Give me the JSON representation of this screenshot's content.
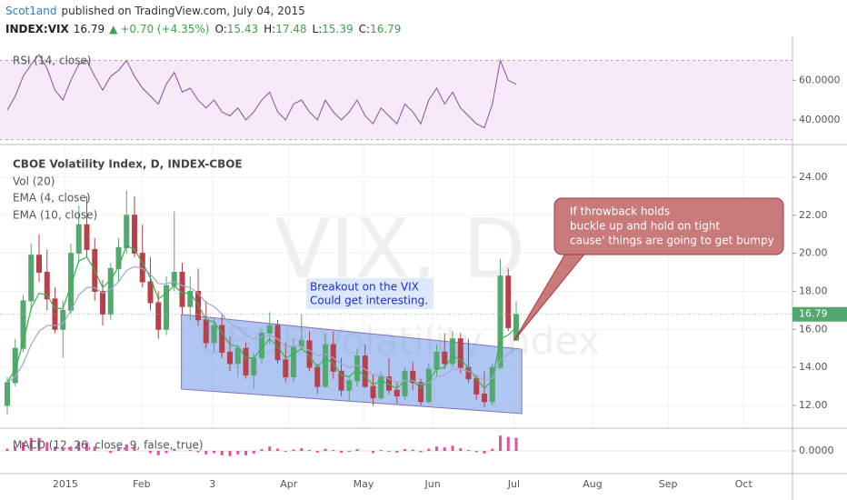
{
  "header": {
    "author": "Scot1and",
    "published": "published on TradingView.com, July 04, 2015",
    "symbol": "INDEX:VIX",
    "arrow": "▲",
    "change": "+0.70 (+4.35%)",
    "labels": [
      "O:",
      "H:",
      "L:",
      "C:"
    ]
  },
  "chart_data": [
    {
      "type": "line",
      "title": "RSI (14, close)",
      "values": [
        45,
        52,
        62,
        68,
        73,
        66,
        55,
        50,
        60,
        68,
        70,
        62,
        55,
        62,
        65,
        70,
        62,
        56,
        52,
        48,
        58,
        64,
        54,
        56,
        50,
        46,
        50,
        44,
        42,
        46,
        40,
        44,
        50,
        54,
        44,
        40,
        48,
        50,
        44,
        40,
        50,
        44,
        40,
        44,
        50,
        42,
        38,
        46,
        42,
        38,
        48,
        44,
        38,
        50,
        56,
        48,
        54,
        46,
        42,
        38,
        36,
        48,
        70,
        60,
        58
      ],
      "color": "#8e4ba0",
      "bands": [
        30,
        70
      ],
      "band_color": "#f6eaf8",
      "ylim": [
        28,
        78.5
      ],
      "yticks": [
        {
          "value": 40,
          "label": "40.0000"
        },
        {
          "value": 60,
          "label": "60.0000"
        }
      ]
    },
    {
      "type": "candlestick",
      "title": "CBOE Volatility Index, D, INDEX-CBOE",
      "volume_label": "Vol (20)",
      "watermark": "VIX, D",
      "watermark_subtitle": "CBOE Volatility Index",
      "ohlc": [
        [
          12.0,
          13.5,
          11.5,
          13.2
        ],
        [
          13.2,
          15.5,
          13.0,
          15.0
        ],
        [
          15.0,
          17.8,
          14.8,
          17.5
        ],
        [
          17.5,
          20.5,
          17.0,
          19.9
        ],
        [
          19.9,
          21.0,
          18.5,
          19.0
        ],
        [
          19.0,
          20.2,
          17.0,
          17.6
        ],
        [
          17.6,
          18.2,
          15.8,
          16.0
        ],
        [
          16.0,
          17.5,
          14.5,
          17.0
        ],
        [
          17.0,
          20.5,
          16.8,
          20.0
        ],
        [
          20.0,
          22.5,
          19.5,
          21.5
        ],
        [
          21.5,
          23.0,
          19.8,
          20.2
        ],
        [
          20.2,
          20.8,
          17.5,
          18.0
        ],
        [
          18.0,
          18.6,
          16.2,
          16.8
        ],
        [
          16.8,
          19.5,
          16.5,
          19.2
        ],
        [
          19.2,
          20.8,
          18.5,
          20.3
        ],
        [
          20.3,
          23.3,
          20.0,
          22.0
        ],
        [
          22.0,
          23.0,
          19.8,
          20.0
        ],
        [
          20.0,
          21.5,
          18.2,
          18.5
        ],
        [
          18.5,
          19.8,
          17.0,
          17.4
        ],
        [
          17.4,
          18.0,
          15.5,
          16.0
        ],
        [
          16.0,
          18.8,
          15.7,
          18.3
        ],
        [
          18.3,
          22.2,
          18.0,
          19.0
        ],
        [
          19.0,
          19.5,
          16.8,
          17.2
        ],
        [
          17.2,
          18.8,
          16.5,
          18.0
        ],
        [
          18.0,
          19.2,
          16.2,
          16.5
        ],
        [
          16.5,
          17.5,
          15.0,
          15.3
        ],
        [
          15.3,
          16.6,
          14.8,
          16.2
        ],
        [
          16.2,
          16.8,
          14.5,
          14.8
        ],
        [
          14.8,
          15.6,
          13.8,
          14.2
        ],
        [
          14.2,
          15.2,
          13.5,
          15.0
        ],
        [
          15.0,
          15.3,
          13.4,
          13.6
        ],
        [
          13.6,
          14.8,
          12.9,
          14.5
        ],
        [
          14.5,
          16.0,
          14.2,
          15.8
        ],
        [
          15.8,
          16.9,
          15.2,
          16.2
        ],
        [
          16.2,
          16.5,
          14.2,
          14.4
        ],
        [
          14.4,
          15.3,
          13.2,
          13.5
        ],
        [
          13.5,
          15.5,
          13.2,
          15.1
        ],
        [
          15.1,
          16.8,
          14.9,
          15.4
        ],
        [
          15.4,
          15.9,
          13.8,
          14.0
        ],
        [
          14.0,
          14.2,
          12.6,
          13.0
        ],
        [
          13.0,
          15.8,
          12.9,
          15.2
        ],
        [
          15.2,
          15.9,
          13.4,
          13.8
        ],
        [
          13.8,
          14.5,
          12.5,
          12.8
        ],
        [
          12.8,
          13.5,
          12.2,
          13.3
        ],
        [
          13.3,
          15.0,
          13.0,
          14.6
        ],
        [
          14.6,
          15.2,
          12.9,
          13.0
        ],
        [
          13.0,
          13.6,
          12.0,
          12.4
        ],
        [
          12.4,
          13.8,
          12.3,
          13.5
        ],
        [
          13.5,
          14.5,
          12.6,
          12.8
        ],
        [
          12.8,
          13.2,
          12.1,
          12.5
        ],
        [
          12.5,
          14.0,
          12.3,
          13.8
        ],
        [
          13.8,
          14.3,
          12.8,
          13.2
        ],
        [
          13.2,
          13.4,
          12.0,
          12.2
        ],
        [
          12.2,
          14.2,
          12.1,
          13.9
        ],
        [
          13.9,
          15.2,
          13.5,
          14.8
        ],
        [
          14.8,
          15.8,
          13.9,
          14.2
        ],
        [
          14.2,
          15.9,
          14.0,
          15.5
        ],
        [
          15.5,
          15.8,
          13.7,
          14.0
        ],
        [
          14.0,
          15.5,
          13.2,
          13.4
        ],
        [
          13.4,
          13.6,
          12.3,
          12.6
        ],
        [
          12.6,
          13.8,
          11.9,
          12.2
        ],
        [
          12.2,
          14.2,
          12.0,
          14.0
        ],
        [
          14.0,
          19.7,
          13.9,
          18.8
        ],
        [
          18.8,
          19.2,
          15.9,
          16.09
        ],
        [
          15.43,
          17.48,
          15.39,
          16.79
        ]
      ],
      "up_color": "#53a86f",
      "down_color": "#b8404a",
      "series": [
        {
          "name": "EMA (4, close)",
          "color": "#37b34a",
          "values": [
            13.2,
            13.9,
            15.3,
            17.1,
            17.9,
            17.8,
            17.1,
            17.1,
            18.3,
            19.6,
            19.8,
            19.1,
            18.2,
            18.6,
            19.3,
            20.4,
            20.2,
            19.5,
            18.7,
            17.6,
            17.9,
            18.3,
            17.9,
            17.9,
            17.3,
            16.5,
            16.4,
            15.8,
            15.2,
            15.1,
            14.5,
            14.5,
            15.0,
            15.5,
            15.1,
            14.5,
            14.7,
            15.0,
            14.6,
            14.0,
            14.5,
            14.2,
            13.6,
            13.5,
            13.9,
            13.5,
            13.1,
            13.3,
            13.1,
            12.9,
            13.3,
            13.3,
            12.9,
            13.3,
            13.9,
            14.0,
            14.6,
            14.4,
            14.0,
            13.4,
            12.9,
            13.3,
            15.5,
            15.7,
            16.1
          ]
        },
        {
          "name": "EMA (10, close)",
          "color": "#9fa8cc",
          "values": [
            13.2,
            13.5,
            14.2,
            15.2,
            15.9,
            16.2,
            16.2,
            16.3,
            17.0,
            17.8,
            18.2,
            18.2,
            17.9,
            18.1,
            18.5,
            19.1,
            19.3,
            19.2,
            18.9,
            18.4,
            18.4,
            18.5,
            18.3,
            18.2,
            17.9,
            17.4,
            17.2,
            16.8,
            16.3,
            16.1,
            15.7,
            15.5,
            15.6,
            15.7,
            15.5,
            15.1,
            15.1,
            15.1,
            14.9,
            14.6,
            14.7,
            14.5,
            14.2,
            14.0,
            14.1,
            13.9,
            13.6,
            13.6,
            13.4,
            13.2,
            13.3,
            13.3,
            13.1,
            13.2,
            13.5,
            13.6,
            13.9,
            13.9,
            13.8,
            13.6,
            13.3,
            13.4,
            14.4,
            14.7,
            15.0
          ]
        }
      ],
      "channel": {
        "x": [
          21.9,
          64.7,
          64.7,
          21.9
        ],
        "y": [
          16.78,
          14.96,
          11.57,
          12.86
        ],
        "color": "#6f97e8"
      },
      "annotations": [
        {
          "text": [
            "Breakout on the VIX",
            "Could get interesting."
          ]
        },
        {
          "text": [
            "If throwback holds",
            "buckle up  and hold on tight",
            "cause' things are going to get bumpy"
          ]
        }
      ],
      "ylim": [
        10.85,
        25.67
      ],
      "yticks": [
        {
          "value": 12,
          "label": "12.00"
        },
        {
          "value": 14,
          "label": "14.00"
        },
        {
          "value": 16,
          "label": "16.00"
        },
        {
          "value": 18,
          "label": "18.00"
        },
        {
          "value": 20,
          "label": "20.00"
        },
        {
          "value": 22,
          "label": "22.00"
        },
        {
          "value": 24,
          "label": "24.00"
        }
      ],
      "xlim": [
        -0.914,
        98.74
      ],
      "xticks": [
        {
          "value": 7.3,
          "label": "2015"
        },
        {
          "value": 16.9,
          "label": "Feb"
        },
        {
          "value": 25.8,
          "label": "3"
        },
        {
          "value": 35.4,
          "label": "Apr"
        },
        {
          "value": 44.8,
          "label": "May"
        },
        {
          "value": 53.5,
          "label": "Jun"
        },
        {
          "value": 63.7,
          "label": "Jul"
        },
        {
          "value": 73.6,
          "label": "Aug"
        },
        {
          "value": 83.1,
          "label": "Sep"
        },
        {
          "value": 92.6,
          "label": "Oct"
        }
      ]
    },
    {
      "type": "bar",
      "title": "MACD (12, 26, close, 9, false, true)",
      "values": [
        0.05,
        0.1,
        0.2,
        0.3,
        0.3,
        0.2,
        0.1,
        0.05,
        0.1,
        0.2,
        0.2,
        0.1,
        0,
        -0.05,
        0.05,
        0.15,
        0.1,
        0,
        -0.05,
        -0.1,
        -0.05,
        0.05,
        0,
        0.02,
        -0.03,
        -0.08,
        -0.05,
        -0.1,
        -0.12,
        -0.08,
        -0.1,
        -0.06,
        0.04,
        0.1,
        0.05,
        -0.02,
        0.03,
        0.06,
        0.02,
        -0.04,
        0.05,
        0.02,
        -0.04,
        -0.02,
        0.04,
        0,
        -0.05,
        0.02,
        -0.02,
        -0.04,
        0.04,
        0.03,
        -0.03,
        0.05,
        0.1,
        0.08,
        0.12,
        0.06,
        0.02,
        -0.03,
        -0.06,
        0.05,
        0.35,
        0.32,
        0.3
      ],
      "color": "#e0509e",
      "ylim": [
        -0.5,
        0.5
      ],
      "yticks": [
        {
          "value": 0,
          "label": "0.0000"
        }
      ]
    }
  ]
}
